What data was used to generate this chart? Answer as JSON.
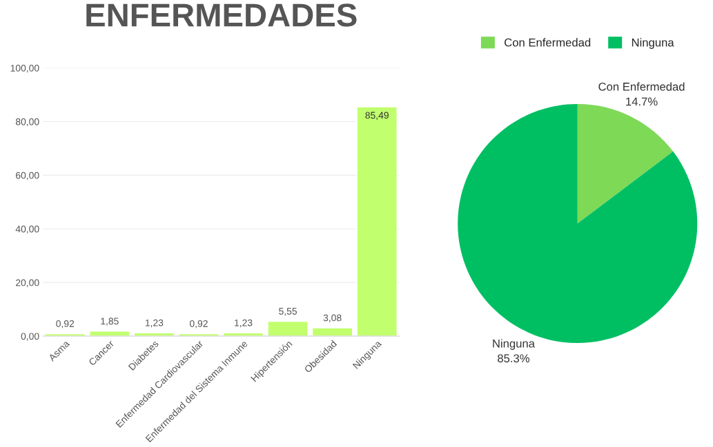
{
  "chart_data": [
    {
      "type": "bar",
      "title": "ENFERMEDADES",
      "categories": [
        "Asma",
        "Cancer",
        "Diabetes",
        "Enfermedad Cardiovascular",
        "Enfermedad del Sistema Inmune",
        "Hipertensión",
        "Obesidad",
        "Ninguna"
      ],
      "values": [
        0.92,
        1.85,
        1.23,
        0.92,
        1.23,
        5.55,
        3.08,
        85.49
      ],
      "value_labels": [
        "0,92",
        "1,85",
        "1,23",
        "0,92",
        "1,23",
        "5,55",
        "3,08",
        "85,49"
      ],
      "color": "#c1ff6e",
      "ylim": [
        0,
        100
      ],
      "yticks": [
        {
          "value": 0,
          "label": "0,00"
        },
        {
          "value": 20,
          "label": "20,00"
        },
        {
          "value": 40,
          "label": "40,00"
        },
        {
          "value": 60,
          "label": "60,00"
        },
        {
          "value": 80,
          "label": "80,00"
        },
        {
          "value": 100,
          "label": "100,00"
        }
      ],
      "grid": "y"
    },
    {
      "type": "pie",
      "categories": [
        "Con Enfermedad",
        "Ninguna"
      ],
      "values": [
        14.7,
        85.3
      ],
      "value_labels": [
        "14.7%",
        "85.3%"
      ],
      "colors": [
        "#7ed957",
        "#00bf63"
      ],
      "legend": "top"
    }
  ]
}
